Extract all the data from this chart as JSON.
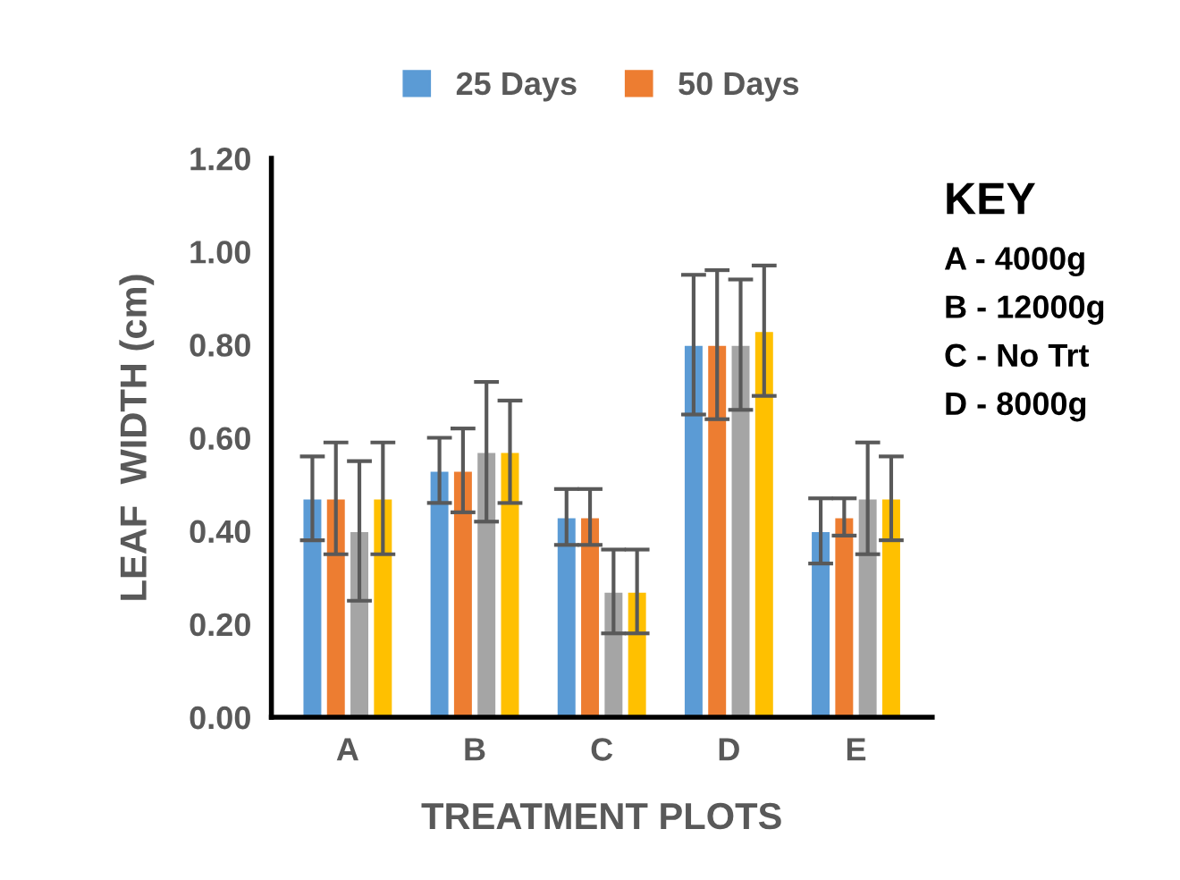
{
  "chart_data": {
    "type": "bar",
    "xlabel": "TREATMENT PLOTS",
    "ylabel": "LEAF  WIDTH (cm)",
    "categories": [
      "A",
      "B",
      "C",
      "D",
      "E"
    ],
    "series": [
      {
        "name": "25 Days",
        "color": "#5b9bd5",
        "values": [
          0.47,
          0.53,
          0.43,
          0.8,
          0.4
        ],
        "errors": [
          0.09,
          0.07,
          0.06,
          0.15,
          0.07
        ]
      },
      {
        "name": "50 Days",
        "color": "#ed7d31",
        "values": [
          0.47,
          0.53,
          0.43,
          0.8,
          0.43
        ],
        "errors": [
          0.12,
          0.09,
          0.06,
          0.16,
          0.04
        ]
      },
      {
        "color": "#a5a5a5",
        "values": [
          0.4,
          0.57,
          0.27,
          0.8,
          0.47
        ],
        "errors": [
          0.15,
          0.15,
          0.09,
          0.14,
          0.12
        ]
      },
      {
        "color": "#ffc000",
        "values": [
          0.47,
          0.57,
          0.27,
          0.83,
          0.47
        ],
        "errors": [
          0.12,
          0.11,
          0.09,
          0.14,
          0.09
        ]
      }
    ],
    "ylim": [
      0,
      1.2
    ],
    "yticks": [
      {
        "value": 0,
        "label": "0.00"
      },
      {
        "value": 0.2,
        "label": "0.20"
      },
      {
        "value": 0.4,
        "label": "0.40"
      },
      {
        "value": 0.6,
        "label": "0.60"
      },
      {
        "value": 0.8,
        "label": "0.80"
      },
      {
        "value": 1.0,
        "label": "1.00"
      },
      {
        "value": 1.2,
        "label": "1.20"
      }
    ],
    "grid": false,
    "legend": "top",
    "annotations": [
      "KEY",
      "A - 4000g",
      "B - 12000g",
      "C - No Trt",
      "D - 8000g"
    ]
  }
}
